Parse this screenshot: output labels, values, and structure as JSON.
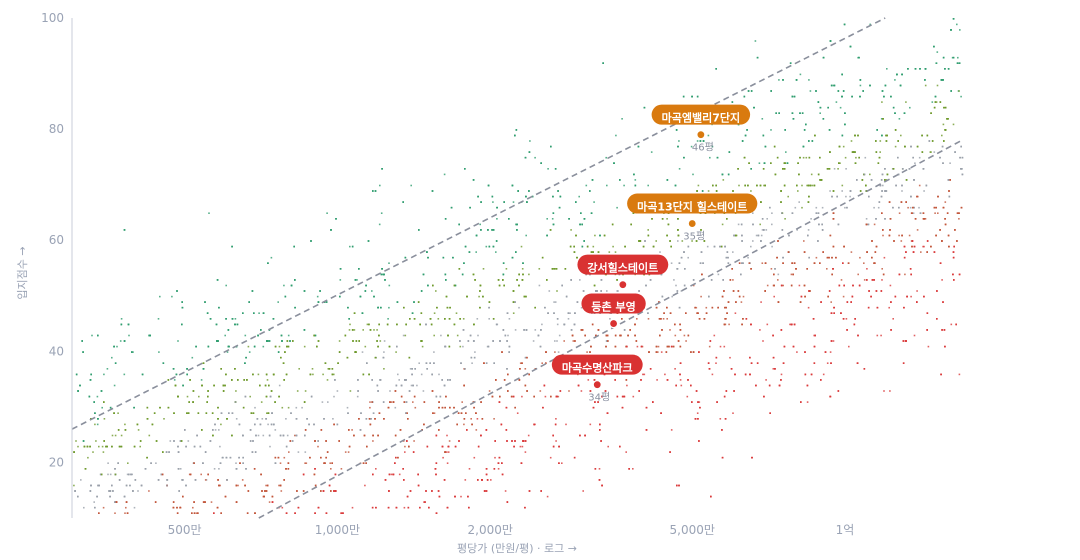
{
  "chart_data": {
    "type": "scatter",
    "x_scale": "log",
    "x_unit": "만원/평",
    "xlabel": "평당가 (만원/평) · 로그 →",
    "ylabel": "입지점수 →",
    "xlim": [
      300,
      17000
    ],
    "ylim": [
      10,
      100
    ],
    "grid": false,
    "x_ticks": [
      {
        "value": 500,
        "label": "500만"
      },
      {
        "value": 1000,
        "label": "1,000만"
      },
      {
        "value": 2000,
        "label": "2,000만"
      },
      {
        "value": 5000,
        "label": "5,000만"
      },
      {
        "value": 10000,
        "label": "1억"
      }
    ],
    "y_ticks": [
      20,
      40,
      60,
      80,
      100
    ],
    "trend_lines": [
      {
        "points": [
          [
            300,
            26
          ],
          [
            12000,
            100
          ]
        ]
      },
      {
        "points": [
          [
            700,
            10
          ],
          [
            17000,
            78
          ]
        ]
      }
    ],
    "highlighted": [
      {
        "name": "마곡엠밸리7단지",
        "x": 5200,
        "y": 79,
        "sub": "46평",
        "color": "#d97a0f"
      },
      {
        "name": "마곡13단지 힐스테이트",
        "x": 5000,
        "y": 63,
        "sub": "35평",
        "color": "#d97a0f"
      },
      {
        "name": "강서힐스테이트",
        "x": 3650,
        "y": 52,
        "sub": "",
        "color": "#d93232"
      },
      {
        "name": "등촌 부영",
        "x": 3500,
        "y": 45,
        "sub": "",
        "color": "#d93232"
      },
      {
        "name": "마곡수명산파크",
        "x": 3250,
        "y": 34,
        "sub": "34평",
        "color": "#d93232"
      }
    ]
  }
}
